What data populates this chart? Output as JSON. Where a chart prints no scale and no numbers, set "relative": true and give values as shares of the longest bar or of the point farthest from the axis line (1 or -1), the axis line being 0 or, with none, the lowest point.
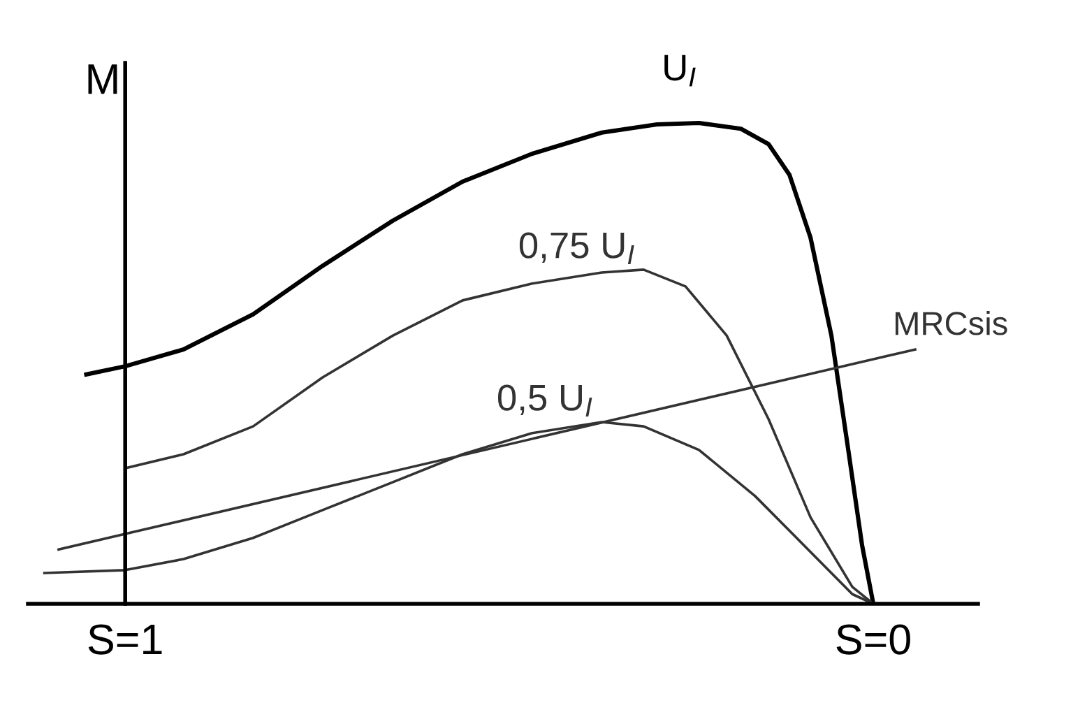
{
  "chart_data": {
    "type": "line",
    "relative": true,
    "ylabel": "M",
    "xlim": [
      1.13,
      -0.14
    ],
    "xticks": [
      {
        "value": 1,
        "label": "S=1"
      },
      {
        "value": 0,
        "label": "S=0"
      }
    ],
    "legend": false,
    "marker": "none",
    "line_style": "solid",
    "series": [
      {
        "name": "U$_{I}$",
        "color": "#000000",
        "x": [
          1.052,
          1.0,
          0.922,
          0.829,
          0.736,
          0.642,
          0.549,
          0.456,
          0.363,
          0.289,
          0.233,
          0.177,
          0.14,
          0.112,
          0.084,
          0.056,
          0.034,
          0.015,
          0
        ],
        "values": [
          0.477,
          0.494,
          0.529,
          0.602,
          0.703,
          0.797,
          0.878,
          0.936,
          0.98,
          0.997,
          1.0,
          0.988,
          0.956,
          0.892,
          0.762,
          0.558,
          0.326,
          0.122,
          0
        ]
      },
      {
        "name": "0,75 U$_{I}$",
        "color": "#333333",
        "x": [
          1.0,
          0.922,
          0.829,
          0.736,
          0.642,
          0.549,
          0.456,
          0.363,
          0.307,
          0.251,
          0.196,
          0.14,
          0.084,
          0.028,
          0
        ],
        "values": [
          0.282,
          0.311,
          0.369,
          0.471,
          0.558,
          0.631,
          0.666,
          0.689,
          0.695,
          0.66,
          0.558,
          0.384,
          0.18,
          0.035,
          0
        ]
      },
      {
        "name": "0,5 U$_{I}$",
        "color": "#333333",
        "x": [
          1.108,
          1.0,
          0.922,
          0.829,
          0.736,
          0.642,
          0.549,
          0.456,
          0.363,
          0.307,
          0.233,
          0.158,
          0.084,
          0.028,
          0
        ],
        "values": [
          0.064,
          0.07,
          0.093,
          0.137,
          0.195,
          0.253,
          0.311,
          0.355,
          0.378,
          0.369,
          0.32,
          0.224,
          0.108,
          0.02,
          0
        ]
      },
      {
        "name": "MRCsis",
        "color": "#333333",
        "x": [
          1.089,
          -0.056
        ],
        "values": [
          0.113,
          0.529
        ]
      }
    ]
  }
}
